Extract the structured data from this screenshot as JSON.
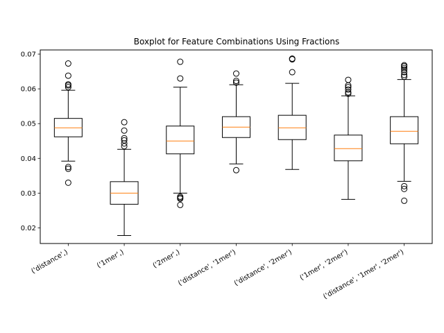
{
  "chart_data": {
    "type": "box",
    "title": "Boxplot for Feature Combinations Using Fractions",
    "xlabel": "",
    "ylabel": "",
    "ylim": [
      0.0155,
      0.0712
    ],
    "yticks": [
      0.02,
      0.03,
      0.04,
      0.05,
      0.06,
      0.07
    ],
    "ytick_labels": [
      "0.02",
      "0.03",
      "0.04",
      "0.05",
      "0.06",
      "0.07"
    ],
    "categories": [
      "('distance',)",
      "('1mer',)",
      "('2mer',)",
      "('distance', '1mer')",
      "('distance', '2mer')",
      "('1mer', '2mer')",
      "('distance', '1mer', '2mer')"
    ],
    "boxes": [
      {
        "whislo": 0.0392,
        "q1": 0.0462,
        "med": 0.0488,
        "q3": 0.0515,
        "whishi": 0.0596,
        "fliers": [
          0.033,
          0.037,
          0.0375,
          0.0605,
          0.061,
          0.0613,
          0.0638,
          0.0673
        ]
      },
      {
        "whislo": 0.0178,
        "q1": 0.0268,
        "med": 0.03,
        "q3": 0.0333,
        "whishi": 0.0426,
        "fliers": [
          0.0435,
          0.0443,
          0.0452,
          0.0458,
          0.048,
          0.0504
        ]
      },
      {
        "whislo": 0.03,
        "q1": 0.0413,
        "med": 0.045,
        "q3": 0.0493,
        "whishi": 0.0605,
        "fliers": [
          0.0266,
          0.0284,
          0.0287,
          0.029,
          0.063,
          0.0678
        ]
      },
      {
        "whislo": 0.0384,
        "q1": 0.046,
        "med": 0.049,
        "q3": 0.052,
        "whishi": 0.0612,
        "fliers": [
          0.0366,
          0.0618,
          0.0623,
          0.0644
        ]
      },
      {
        "whislo": 0.0368,
        "q1": 0.0454,
        "med": 0.0488,
        "q3": 0.0524,
        "whishi": 0.0616,
        "fliers": [
          0.0648,
          0.0685,
          0.0687
        ]
      },
      {
        "whislo": 0.0282,
        "q1": 0.0393,
        "med": 0.0428,
        "q3": 0.0467,
        "whishi": 0.058,
        "fliers": [
          0.0586,
          0.059,
          0.0598,
          0.0605,
          0.061,
          0.0626
        ]
      },
      {
        "whislo": 0.0334,
        "q1": 0.0442,
        "med": 0.0478,
        "q3": 0.052,
        "whishi": 0.0627,
        "fliers": [
          0.0278,
          0.0312,
          0.032,
          0.0635,
          0.064,
          0.0648,
          0.0655,
          0.066,
          0.0665,
          0.0668
        ]
      }
    ],
    "grid": false,
    "legend": "none",
    "colors": {
      "box": "#000000",
      "median": "#ff7f0e",
      "flier": "#000000",
      "background": "#ffffff"
    }
  }
}
